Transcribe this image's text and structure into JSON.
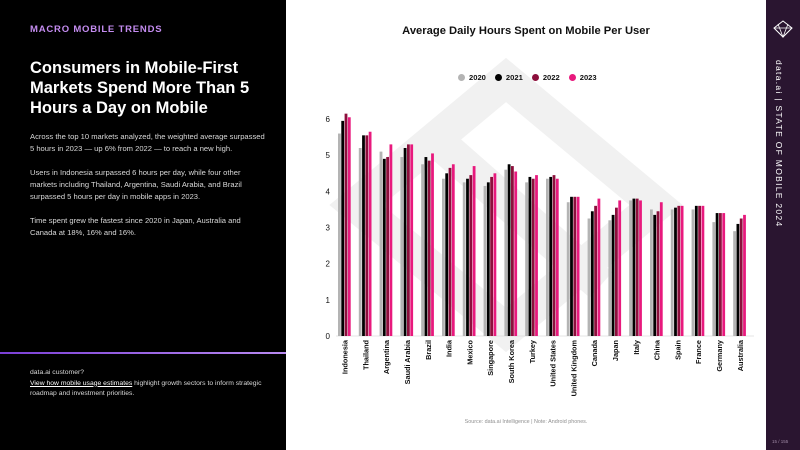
{
  "left_panel": {
    "kicker": "MACRO MOBILE TRENDS",
    "headline": "Consumers in Mobile-First Markets Spend More Than 5 Hours a Day on Mobile",
    "paragraphs": [
      "Across the top 10 markets analyzed, the weighted average surpassed 5 hours in 2023 — up 6% from 2022 — to reach a new high.",
      "Users in Indonesia surpassed 6 hours per day, while four other markets including Thailand, Argentina, Saudi Arabia, and Brazil surpassed 5 hours per day in mobile apps in 2023.",
      "Time spent grew the fastest since 2020 in Japan, Australia and Canada at 18%, 16% and 16%."
    ],
    "cta_line1": "data.ai customer?",
    "cta_link": "View how mobile usage estimates",
    "cta_rest": " highlight growth sectors to inform strategic roadmap and investment priorities."
  },
  "right_rail": {
    "text": "data.ai | STATE OF MOBILE 2024",
    "page_number": "15 / 155"
  },
  "colors": {
    "left_bg": "#000000",
    "kicker": "#c48cf0",
    "rail_bg": "#2a1530",
    "series_2020": "#b4b4b4",
    "series_2021": "#000000",
    "series_2022": "#8c0f3c",
    "series_2023": "#e8197d"
  },
  "chart_data": {
    "type": "bar",
    "title": "Average Daily Hours Spent on Mobile Per User",
    "categories": [
      "Indonesia",
      "Thailand",
      "Argentina",
      "Saudi Arabia",
      "Brazil",
      "India",
      "Mexico",
      "Singapore",
      "South Korea",
      "Turkey",
      "United States",
      "United Kingdom",
      "Canada",
      "Japan",
      "Italy",
      "China",
      "Spain",
      "France",
      "Germany",
      "Australia"
    ],
    "series": [
      {
        "name": "2020",
        "color": "#b4b4b4",
        "values": [
          5.6,
          5.2,
          5.1,
          4.95,
          4.75,
          4.35,
          4.25,
          4.15,
          4.6,
          4.25,
          4.35,
          3.7,
          3.25,
          3.2,
          3.75,
          3.5,
          3.5,
          3.5,
          3.15,
          2.9
        ]
      },
      {
        "name": "2021",
        "color": "#000000",
        "values": [
          5.95,
          5.55,
          4.9,
          5.2,
          4.95,
          4.5,
          4.35,
          4.25,
          4.75,
          4.4,
          4.4,
          3.85,
          3.45,
          3.35,
          3.8,
          3.35,
          3.55,
          3.6,
          3.4,
          3.1
        ]
      },
      {
        "name": "2022",
        "color": "#8c0f3c",
        "values": [
          6.15,
          5.55,
          4.95,
          5.3,
          4.85,
          4.65,
          4.45,
          4.4,
          4.7,
          4.35,
          4.45,
          3.85,
          3.6,
          3.55,
          3.8,
          3.45,
          3.6,
          3.6,
          3.4,
          3.25
        ]
      },
      {
        "name": "2023",
        "color": "#e8197d",
        "values": [
          6.05,
          5.65,
          5.3,
          5.3,
          5.05,
          4.75,
          4.7,
          4.5,
          4.55,
          4.45,
          4.35,
          3.85,
          3.8,
          3.75,
          3.75,
          3.7,
          3.6,
          3.6,
          3.4,
          3.35
        ]
      }
    ],
    "yticks": [
      "0",
      "1",
      "2",
      "3",
      "4",
      "5",
      "6"
    ],
    "ylim": [
      0,
      6.5
    ],
    "legend": "top-center",
    "grid": false,
    "source": "Source: data.ai Intelligence | Note: Android phones."
  }
}
